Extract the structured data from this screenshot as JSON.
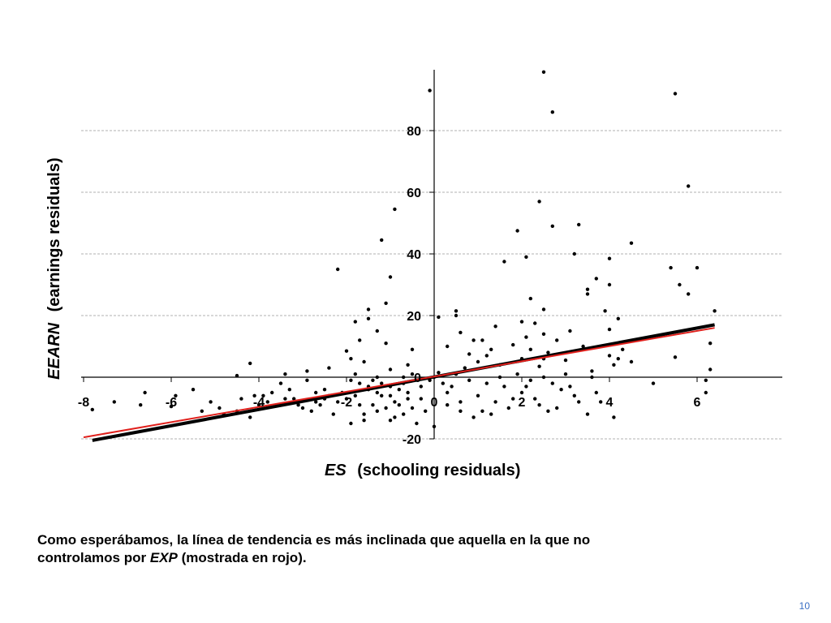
{
  "chart_data": {
    "type": "scatter",
    "title": "",
    "xlabel_var": "ES",
    "xlabel_text": "(schooling residuals)",
    "ylabel_var": "EEARN",
    "ylabel_text": "(earnings residuals)",
    "xlim": [
      -8,
      6.5
    ],
    "ylim": [
      -20,
      100
    ],
    "x_ticks": [
      "-8",
      "-6",
      "-4",
      "-2",
      "0",
      "2",
      "4",
      "6"
    ],
    "y_ticks": [
      "-20",
      "0",
      "20",
      "40",
      "60",
      "80"
    ],
    "grid": "horizontal dashed",
    "colors": {
      "points": "#000000",
      "fit_black": "#000000",
      "fit_red": "#e0201c",
      "grid": "#999999"
    },
    "lines": [
      {
        "color": "black",
        "x": [
          -7.8,
          6.4
        ],
        "y": [
          -20.5,
          17.0
        ]
      },
      {
        "color": "red",
        "x": [
          -8.0,
          6.4
        ],
        "y": [
          -19.5,
          16.0
        ]
      }
    ],
    "points": [
      [
        -0.1,
        93
      ],
      [
        2.5,
        99
      ],
      [
        2.7,
        86
      ],
      [
        5.5,
        92
      ],
      [
        5.8,
        62
      ],
      [
        2.4,
        57
      ],
      [
        2.7,
        49
      ],
      [
        3.3,
        49.5
      ],
      [
        1.9,
        47.5
      ],
      [
        -1.2,
        44.5
      ],
      [
        -0.9,
        54.5
      ],
      [
        4.5,
        43.5
      ],
      [
        3.2,
        40
      ],
      [
        1.6,
        37.5
      ],
      [
        2.1,
        39
      ],
      [
        -2.2,
        35
      ],
      [
        -1.0,
        32.5
      ],
      [
        5.4,
        35.5
      ],
      [
        6.0,
        35.5
      ],
      [
        3.7,
        32
      ],
      [
        4.0,
        38.5
      ],
      [
        3.5,
        28.5
      ],
      [
        3.5,
        27
      ],
      [
        5.6,
        30
      ],
      [
        5.8,
        27
      ],
      [
        4.0,
        30
      ],
      [
        -1.5,
        22
      ],
      [
        -1.8,
        18
      ],
      [
        -1.1,
        24
      ],
      [
        0.5,
        21.5
      ],
      [
        0.5,
        20
      ],
      [
        2.2,
        25.5
      ],
      [
        2.5,
        22
      ],
      [
        3.9,
        21.5
      ],
      [
        6.4,
        21.5
      ],
      [
        0.1,
        19.5
      ],
      [
        1.4,
        16.5
      ],
      [
        2.0,
        18
      ],
      [
        2.3,
        17.5
      ],
      [
        4.2,
        19
      ],
      [
        -1.5,
        19
      ],
      [
        -1.3,
        15
      ],
      [
        0.6,
        14.5
      ],
      [
        1.1,
        12
      ],
      [
        2.1,
        13
      ],
      [
        2.5,
        14
      ],
      [
        3.1,
        15
      ],
      [
        4.0,
        15.5
      ],
      [
        6.3,
        11
      ],
      [
        -2.0,
        8.5
      ],
      [
        -1.7,
        12
      ],
      [
        -1.1,
        11
      ],
      [
        -0.5,
        9
      ],
      [
        0.3,
        10
      ],
      [
        0.8,
        7.5
      ],
      [
        1.3,
        9
      ],
      [
        1.8,
        10.5
      ],
      [
        2.6,
        8
      ],
      [
        3.4,
        10
      ],
      [
        4.3,
        9
      ],
      [
        5.5,
        6.5
      ],
      [
        -4.2,
        4.5
      ],
      [
        -4.5,
        0.5
      ],
      [
        -3.4,
        1
      ],
      [
        -2.9,
        2
      ],
      [
        -2.4,
        3
      ],
      [
        -1.9,
        6
      ],
      [
        -1.6,
        5
      ],
      [
        -1.0,
        2.5
      ],
      [
        -0.6,
        4
      ],
      [
        0.1,
        1.5
      ],
      [
        0.7,
        3
      ],
      [
        1.0,
        5
      ],
      [
        1.5,
        4
      ],
      [
        2.0,
        6
      ],
      [
        2.4,
        3.5
      ],
      [
        3.0,
        5.5
      ],
      [
        3.6,
        2
      ],
      [
        4.1,
        4
      ],
      [
        5.0,
        -2
      ],
      [
        6.3,
        2.5
      ],
      [
        6.2,
        -1
      ],
      [
        6.2,
        -5
      ],
      [
        -7.8,
        -10.5
      ],
      [
        -7.3,
        -8
      ],
      [
        -6.7,
        -9
      ],
      [
        -6.0,
        -9.5
      ],
      [
        -5.9,
        -6
      ],
      [
        -5.5,
        -4
      ],
      [
        -5.1,
        -8
      ],
      [
        -4.8,
        -12
      ],
      [
        -4.5,
        -11
      ],
      [
        -4.2,
        -13
      ],
      [
        -3.9,
        -6
      ],
      [
        -3.6,
        -9
      ],
      [
        -3.2,
        -7
      ],
      [
        -2.8,
        -11
      ],
      [
        -2.5,
        -4
      ],
      [
        -2.2,
        -8
      ],
      [
        -1.9,
        -15
      ],
      [
        -1.6,
        -12
      ],
      [
        -1.4,
        -9
      ],
      [
        -1.1,
        -10
      ],
      [
        -0.9,
        -13
      ],
      [
        -0.6,
        -7
      ],
      [
        -0.4,
        -15
      ],
      [
        -0.2,
        -11
      ],
      [
        0.0,
        -16
      ],
      [
        0.3,
        -5
      ],
      [
        0.6,
        -8
      ],
      [
        0.9,
        -13
      ],
      [
        1.1,
        -11
      ],
      [
        1.4,
        -8
      ],
      [
        1.7,
        -10
      ],
      [
        2.0,
        -5
      ],
      [
        2.3,
        -7
      ],
      [
        2.6,
        -11
      ],
      [
        2.9,
        -4
      ],
      [
        3.2,
        -6
      ],
      [
        3.5,
        -12
      ],
      [
        3.8,
        -8
      ],
      [
        4.1,
        -13
      ],
      [
        -3.0,
        -10
      ],
      [
        -2.6,
        -9
      ],
      [
        -2.3,
        -12
      ],
      [
        -2.0,
        -7
      ],
      [
        -1.8,
        -6
      ],
      [
        -1.7,
        -9
      ],
      [
        -1.5,
        -3
      ],
      [
        -1.3,
        -5
      ],
      [
        -1.2,
        -2
      ],
      [
        -1.0,
        -6
      ],
      [
        -0.8,
        -4
      ],
      [
        -0.7,
        -2
      ],
      [
        -0.3,
        -3
      ],
      [
        -0.1,
        -1
      ],
      [
        0.2,
        -2
      ],
      [
        0.4,
        -3
      ],
      [
        0.8,
        -1
      ],
      [
        1.2,
        -2
      ],
      [
        1.6,
        -3
      ],
      [
        2.2,
        -1
      ],
      [
        2.7,
        -2
      ],
      [
        3.1,
        -3
      ],
      [
        -1.9,
        -1
      ],
      [
        -1.7,
        -2
      ],
      [
        -1.5,
        -4
      ],
      [
        -1.4,
        -1
      ],
      [
        -1.2,
        -6
      ],
      [
        -1.0,
        -3
      ],
      [
        -0.9,
        -8
      ],
      [
        -0.8,
        -9
      ],
      [
        -2.1,
        -5
      ],
      [
        -2.4,
        -6
      ],
      [
        -2.7,
        -5
      ],
      [
        -3.3,
        -4
      ],
      [
        -3.7,
        -5
      ],
      [
        -4.0,
        -9
      ],
      [
        -4.4,
        -7
      ],
      [
        -4.9,
        -10
      ],
      [
        -5.3,
        -11
      ],
      [
        -6.6,
        -5
      ],
      [
        -3.5,
        -2
      ],
      [
        -2.9,
        -1
      ],
      [
        -0.5,
        1
      ],
      [
        0.0,
        0
      ],
      [
        0.5,
        1
      ],
      [
        1.5,
        0
      ],
      [
        -1.8,
        1
      ],
      [
        -1.3,
        0
      ],
      [
        -0.7,
        0
      ],
      [
        -1.6,
        -14
      ],
      [
        -1.3,
        -11
      ],
      [
        -1.0,
        -14
      ],
      [
        -0.7,
        -12
      ],
      [
        -0.5,
        -10
      ],
      [
        1.0,
        -6
      ],
      [
        1.3,
        -12
      ],
      [
        1.8,
        -7
      ],
      [
        2.1,
        -3
      ],
      [
        2.4,
        -9
      ],
      [
        2.8,
        -10
      ],
      [
        3.3,
        -8
      ],
      [
        3.7,
        -5
      ],
      [
        0.6,
        -11
      ],
      [
        0.3,
        -9
      ],
      [
        -0.3,
        -7
      ],
      [
        -0.6,
        -5
      ],
      [
        1.9,
        1
      ],
      [
        2.5,
        0
      ],
      [
        3.0,
        1
      ],
      [
        3.6,
        0
      ],
      [
        4.0,
        7
      ],
      [
        4.2,
        6
      ],
      [
        4.5,
        5
      ],
      [
        2.2,
        9
      ],
      [
        2.8,
        12
      ],
      [
        2.5,
        6
      ],
      [
        1.2,
        7
      ],
      [
        0.9,
        12
      ],
      [
        -2.5,
        -7
      ],
      [
        -2.7,
        -8
      ],
      [
        -3.1,
        -9
      ],
      [
        -3.4,
        -7
      ],
      [
        -3.8,
        -8
      ],
      [
        -4.1,
        -6
      ]
    ]
  },
  "caption": {
    "line1": "Como esperábamos, la línea de tendencia es más inclinada que aquella en la que no",
    "line2_before": "controlamos por ",
    "line2_var": "EXP",
    "line2_after": " (mostrada en rojo)."
  },
  "page_number": "10"
}
